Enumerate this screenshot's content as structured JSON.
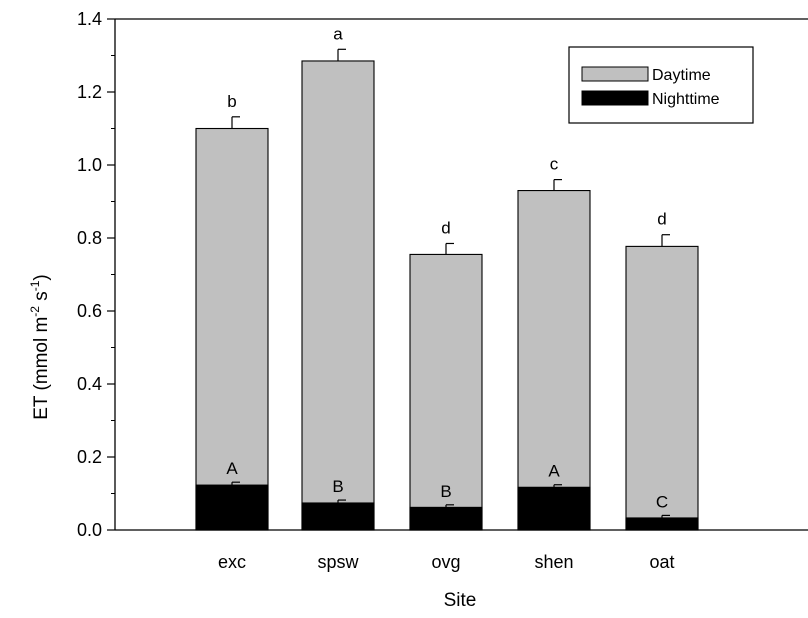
{
  "chart_data": {
    "type": "bar",
    "stacked": true,
    "categories": [
      "exc",
      "spsw",
      "ovg",
      "shen",
      "oat"
    ],
    "series": [
      {
        "name": "Daytime",
        "values": [
          1.1,
          1.285,
          0.755,
          0.93,
          0.777
        ],
        "errors": [
          0.032,
          0.032,
          0.03,
          0.03,
          0.032
        ],
        "letters": [
          "b",
          "a",
          "d",
          "c",
          "d"
        ],
        "color": "#c0c0c0"
      },
      {
        "name": "Nighttime",
        "values": [
          0.123,
          0.074,
          0.062,
          0.117,
          0.033
        ],
        "errors": [
          0.008,
          0.008,
          0.007,
          0.007,
          0.007
        ],
        "letters": [
          "A",
          "B",
          "B",
          "A",
          "C"
        ],
        "color": "#000000"
      }
    ],
    "xlabel": "Site",
    "ylabel": {
      "base": "ET (mmol m",
      "sup1": "-2",
      "mid": " s",
      "sup2": "-1",
      "end": ")"
    },
    "ylim": [
      0.0,
      1.4
    ],
    "yticks": [
      "0.0",
      "0.2",
      "0.4",
      "0.6",
      "0.8",
      "1.0",
      "1.2",
      "1.4"
    ],
    "grid": false,
    "legend_position": "top-right"
  }
}
